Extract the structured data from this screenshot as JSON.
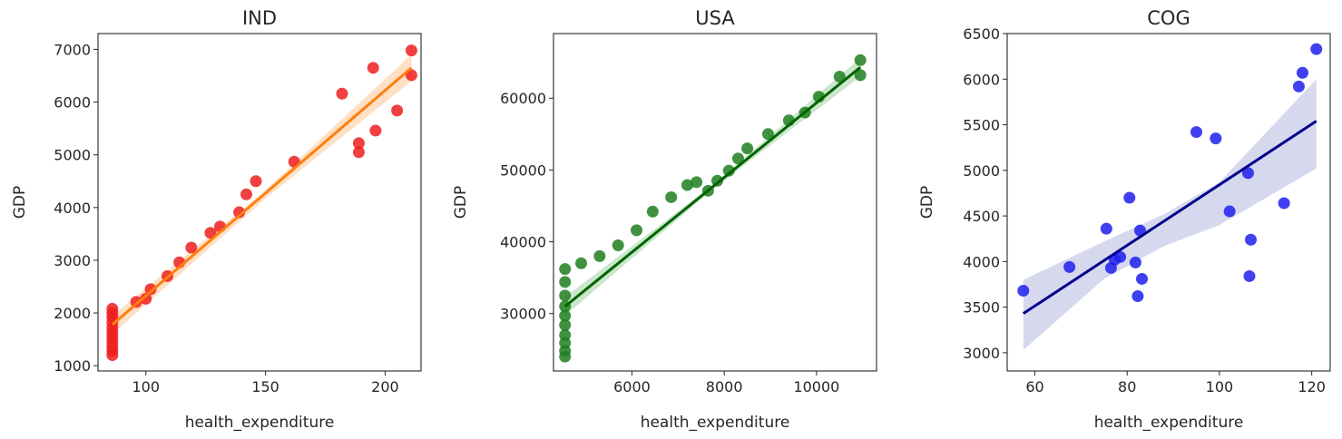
{
  "chart_data": [
    {
      "type": "scatter",
      "title": "IND",
      "xlabel": "health_expenditure",
      "ylabel": "GDP",
      "xlim": [
        80,
        215
      ],
      "ylim": [
        900,
        7300
      ],
      "xticks": [
        100,
        150,
        200
      ],
      "yticks": [
        1000,
        2000,
        3000,
        4000,
        5000,
        6000,
        7000
      ],
      "point_color": "#ee1f1f",
      "line_color": "#ff7f0e",
      "band_color": "#ffd6b0",
      "regression": {
        "x": [
          86,
          211
        ],
        "y": [
          1780,
          6650
        ]
      },
      "band": {
        "x": [
          86,
          150,
          211
        ],
        "upper": [
          1950,
          4330,
          6900
        ],
        "lower": [
          1600,
          4170,
          6400
        ]
      },
      "points": [
        {
          "x": 86,
          "y": 1200
        },
        {
          "x": 86,
          "y": 1280
        },
        {
          "x": 86,
          "y": 1360
        },
        {
          "x": 86,
          "y": 1450
        },
        {
          "x": 86,
          "y": 1540
        },
        {
          "x": 86,
          "y": 1630
        },
        {
          "x": 86,
          "y": 1720
        },
        {
          "x": 86,
          "y": 1820
        },
        {
          "x": 86,
          "y": 1920
        },
        {
          "x": 86,
          "y": 2000
        },
        {
          "x": 86,
          "y": 2080
        },
        {
          "x": 96,
          "y": 2210
        },
        {
          "x": 100,
          "y": 2270
        },
        {
          "x": 102,
          "y": 2450
        },
        {
          "x": 109,
          "y": 2700
        },
        {
          "x": 114,
          "y": 2960
        },
        {
          "x": 119,
          "y": 3240
        },
        {
          "x": 127,
          "y": 3520
        },
        {
          "x": 131,
          "y": 3640
        },
        {
          "x": 139,
          "y": 3910
        },
        {
          "x": 142,
          "y": 4250
        },
        {
          "x": 146,
          "y": 4500
        },
        {
          "x": 162,
          "y": 4870
        },
        {
          "x": 182,
          "y": 6160
        },
        {
          "x": 189,
          "y": 5220
        },
        {
          "x": 189,
          "y": 5050
        },
        {
          "x": 195,
          "y": 6650
        },
        {
          "x": 196,
          "y": 5460
        },
        {
          "x": 205,
          "y": 5840
        },
        {
          "x": 211,
          "y": 6980
        },
        {
          "x": 211,
          "y": 6510
        }
      ]
    },
    {
      "type": "scatter",
      "title": "USA",
      "xlabel": "health_expenditure",
      "ylabel": "GDP",
      "xlim": [
        4300,
        11300
      ],
      "ylim": [
        22000,
        69000
      ],
      "xticks": [
        6000,
        8000,
        10000
      ],
      "yticks": [
        30000,
        40000,
        50000,
        60000
      ],
      "point_color": "#1f7f1f",
      "line_color": "#006400",
      "band_color": "#b9ddb9",
      "regression": {
        "x": [
          4550,
          10950
        ],
        "y": [
          31000,
          64300
        ]
      },
      "band": {
        "x": [
          4550,
          7750,
          10950
        ],
        "upper": [
          32300,
          47900,
          65600
        ],
        "lower": [
          29700,
          47300,
          63000
        ]
      },
      "points": [
        {
          "x": 4550,
          "y": 24000
        },
        {
          "x": 4550,
          "y": 24800
        },
        {
          "x": 4550,
          "y": 25900
        },
        {
          "x": 4550,
          "y": 27000
        },
        {
          "x": 4550,
          "y": 28400
        },
        {
          "x": 4550,
          "y": 29700
        },
        {
          "x": 4550,
          "y": 31000
        },
        {
          "x": 4550,
          "y": 32500
        },
        {
          "x": 4550,
          "y": 34400
        },
        {
          "x": 4550,
          "y": 36200
        },
        {
          "x": 4900,
          "y": 37000
        },
        {
          "x": 5300,
          "y": 38000
        },
        {
          "x": 5700,
          "y": 39500
        },
        {
          "x": 6100,
          "y": 41600
        },
        {
          "x": 6450,
          "y": 44200
        },
        {
          "x": 6850,
          "y": 46200
        },
        {
          "x": 7200,
          "y": 47900
        },
        {
          "x": 7400,
          "y": 48300
        },
        {
          "x": 7650,
          "y": 47100
        },
        {
          "x": 7850,
          "y": 48500
        },
        {
          "x": 8100,
          "y": 49900
        },
        {
          "x": 8300,
          "y": 51600
        },
        {
          "x": 8500,
          "y": 53000
        },
        {
          "x": 8950,
          "y": 55000
        },
        {
          "x": 9400,
          "y": 56900
        },
        {
          "x": 9750,
          "y": 58000
        },
        {
          "x": 10050,
          "y": 60200
        },
        {
          "x": 10500,
          "y": 63000
        },
        {
          "x": 10950,
          "y": 65300
        },
        {
          "x": 10950,
          "y": 63200
        }
      ]
    },
    {
      "type": "scatter",
      "title": "COG",
      "xlabel": "health_expenditure",
      "ylabel": "GDP",
      "xlim": [
        54,
        124
      ],
      "ylim": [
        2800,
        6500
      ],
      "xticks": [
        60,
        80,
        100,
        120
      ],
      "yticks": [
        3000,
        3500,
        4000,
        4500,
        5000,
        5500,
        6000,
        6500
      ],
      "point_color": "#1f1fee",
      "line_color": "#00008b",
      "band_color": "#c8cce8",
      "regression": {
        "x": [
          57.5,
          121
        ],
        "y": [
          3430,
          5540
        ]
      },
      "band": {
        "x": [
          57.5,
          75,
          88,
          100,
          121
        ],
        "upper": [
          3800,
          4220,
          4520,
          4870,
          6000
        ],
        "lower": [
          3030,
          3810,
          4170,
          4400,
          5020
        ]
      },
      "points": [
        {
          "x": 57.5,
          "y": 3680
        },
        {
          "x": 67.5,
          "y": 3940
        },
        {
          "x": 75.5,
          "y": 4360
        },
        {
          "x": 76.5,
          "y": 3930
        },
        {
          "x": 77.3,
          "y": 4020
        },
        {
          "x": 78.5,
          "y": 4050
        },
        {
          "x": 80.5,
          "y": 4700
        },
        {
          "x": 81.8,
          "y": 3990
        },
        {
          "x": 82.3,
          "y": 3620
        },
        {
          "x": 82.8,
          "y": 4340
        },
        {
          "x": 83.2,
          "y": 3810
        },
        {
          "x": 95,
          "y": 5420
        },
        {
          "x": 99.2,
          "y": 5350
        },
        {
          "x": 102.2,
          "y": 4550
        },
        {
          "x": 106.2,
          "y": 4970
        },
        {
          "x": 106.5,
          "y": 3840
        },
        {
          "x": 106.8,
          "y": 4240
        },
        {
          "x": 114,
          "y": 4640
        },
        {
          "x": 117.2,
          "y": 5920
        },
        {
          "x": 118,
          "y": 6070
        },
        {
          "x": 121,
          "y": 6330
        }
      ]
    }
  ]
}
